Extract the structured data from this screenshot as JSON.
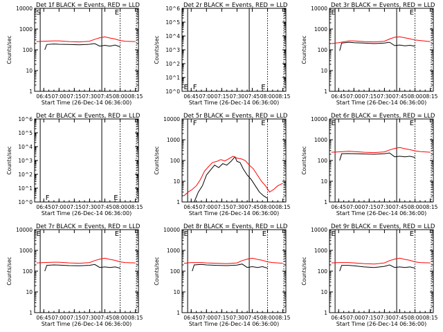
{
  "chart_data": [
    {
      "type": "line",
      "title": "Det 1f BLACK = Events, RED = LLD",
      "xlabel": "Start Time (26-Dec-14 06:36:00)",
      "ylabel": "Counts/sec",
      "yscale": "log",
      "ylim": [
        1,
        10000
      ],
      "ytick_labels": [
        "1",
        "10",
        "100",
        "1000",
        "10000"
      ],
      "xtick_labels": [
        "06:45",
        "07:00",
        "07:15",
        "07:30",
        "07:45",
        "08:00",
        "08:15"
      ],
      "markers": [
        "S",
        "E"
      ],
      "series": [
        {
          "color": "#000000",
          "x": [
            "06:46",
            "06:48",
            "06:55",
            "07:00",
            "07:10",
            "07:20",
            "07:30",
            "07:35",
            "07:40",
            "07:45",
            "07:50",
            "07:55",
            "08:00"
          ],
          "y": [
            100,
            180,
            190,
            185,
            180,
            175,
            185,
            200,
            150,
            165,
            150,
            170,
            140
          ]
        },
        {
          "color": "#ff0000",
          "x": [
            "06:38",
            "06:45",
            "06:55",
            "07:00",
            "07:10",
            "07:20",
            "07:30",
            "07:35",
            "07:40",
            "07:45",
            "07:50",
            "07:55",
            "08:00",
            "08:05",
            "08:15"
          ],
          "y": [
            250,
            260,
            270,
            270,
            250,
            240,
            260,
            320,
            380,
            420,
            370,
            330,
            280,
            260,
            250
          ]
        }
      ]
    },
    {
      "type": "line",
      "title": "Det 2r BLACK = Events, RED = LLD",
      "xlabel": "Start Time (26-Dec-14 06:36:00)",
      "ylabel": "Counts/sec",
      "yscale": "log",
      "ylim": [
        1,
        1000000
      ],
      "ytick_labels": [
        "10^0",
        "10^1",
        "10^2",
        "10^3",
        "10^4",
        "10^5",
        "10^6"
      ],
      "xtick_labels": [
        "06:45",
        "07:00",
        "07:15",
        "07:30",
        "07:45",
        "08:00",
        "08:15"
      ],
      "markers": [
        "E",
        "F",
        "E"
      ],
      "series": []
    },
    {
      "type": "line",
      "title": "Det 3r BLACK = Events, RED = LLD",
      "xlabel": "Start Time (26-Dec-14 06:36:00)",
      "ylabel": "Counts/sec",
      "yscale": "log",
      "ylim": [
        1,
        10000
      ],
      "ytick_labels": [
        "1",
        "10",
        "100",
        "1000",
        "10000"
      ],
      "xtick_labels": [
        "06:45",
        "07:00",
        "07:15",
        "07:30",
        "07:45",
        "08:00",
        "08:15"
      ],
      "markers": [
        "E",
        "E"
      ],
      "series": [
        {
          "color": "#000000",
          "x": [
            "06:46",
            "06:48",
            "06:55",
            "07:00",
            "07:10",
            "07:20",
            "07:30",
            "07:35",
            "07:40",
            "07:45",
            "07:50",
            "07:55",
            "08:00"
          ],
          "y": [
            90,
            210,
            230,
            220,
            210,
            200,
            210,
            230,
            160,
            170,
            155,
            165,
            150
          ]
        },
        {
          "color": "#ff0000",
          "x": [
            "06:38",
            "06:45",
            "06:55",
            "07:00",
            "07:10",
            "07:20",
            "07:30",
            "07:35",
            "07:40",
            "07:45",
            "07:50",
            "07:55",
            "08:00",
            "08:05",
            "08:15"
          ],
          "y": [
            200,
            220,
            270,
            270,
            250,
            240,
            260,
            330,
            400,
            420,
            380,
            340,
            300,
            280,
            250
          ]
        }
      ]
    },
    {
      "type": "line",
      "title": "Det 4r BLACK = Events, RED = LLD",
      "xlabel": "Start Time (26-Dec-14 06:36:00)",
      "ylabel": "Counts/sec",
      "yscale": "log",
      "ylim": [
        1,
        1000000
      ],
      "ytick_labels": [
        "10^0",
        "10^1",
        "10^2",
        "10^3",
        "10^4",
        "10^5",
        "10^6"
      ],
      "xtick_labels": [
        "06:45",
        "07:00",
        "07:15",
        "07:30",
        "07:45",
        "08:00",
        "08:15"
      ],
      "markers": [
        "F",
        "E"
      ],
      "series": []
    },
    {
      "type": "line",
      "title": "Det 5r BLACK = Events, RED = LLD",
      "xlabel": "Start Time (26-Dec-14 06:36:00)",
      "ylabel": "Counts/sec",
      "yscale": "log",
      "ylim": [
        1,
        10000
      ],
      "ytick_labels": [
        "1",
        "10",
        "100",
        "1000",
        "10000"
      ],
      "xtick_labels": [
        "06:45",
        "07:00",
        "07:15",
        "07:30",
        "07:45",
        "08:00",
        "08:15"
      ],
      "markers": [
        "F",
        "E"
      ],
      "series": [
        {
          "color": "#000000",
          "x": [
            "06:48",
            "06:52",
            "06:56",
            "07:00",
            "07:04",
            "07:08",
            "07:12",
            "07:16",
            "07:20",
            "07:24",
            "07:28",
            "07:30",
            "07:33",
            "07:36",
            "07:40",
            "07:44",
            "07:48",
            "07:52",
            "07:56",
            "08:00"
          ],
          "y": [
            1,
            3,
            6,
            20,
            35,
            60,
            45,
            70,
            60,
            90,
            150,
            90,
            80,
            40,
            20,
            12,
            6,
            3,
            2,
            1.5
          ]
        },
        {
          "color": "#ff0000",
          "x": [
            "06:38",
            "06:42",
            "06:46",
            "06:50",
            "06:54",
            "06:58",
            "07:02",
            "07:06",
            "07:10",
            "07:14",
            "07:18",
            "07:22",
            "07:26",
            "07:30",
            "07:34",
            "07:38",
            "07:42",
            "07:46",
            "07:50",
            "07:54",
            "07:58",
            "08:02",
            "08:06",
            "08:10",
            "08:15"
          ],
          "y": [
            2,
            3,
            4,
            6,
            12,
            30,
            50,
            80,
            90,
            110,
            95,
            120,
            160,
            130,
            120,
            100,
            60,
            40,
            20,
            10,
            6,
            3,
            4,
            6,
            8
          ]
        }
      ]
    },
    {
      "type": "line",
      "title": "Det 6r BLACK = Events, RED = LLD",
      "xlabel": "Start Time (26-Dec-14 06:36:00)",
      "ylabel": "Counts/sec",
      "yscale": "log",
      "ylim": [
        1,
        10000
      ],
      "ytick_labels": [
        "1",
        "10",
        "100",
        "1000",
        "10000"
      ],
      "xtick_labels": [
        "06:45",
        "07:00",
        "07:15",
        "07:30",
        "07:45",
        "08:00",
        "08:15"
      ],
      "markers": [
        "E",
        "E"
      ],
      "series": [
        {
          "color": "#000000",
          "x": [
            "06:46",
            "06:48",
            "06:55",
            "07:00",
            "07:10",
            "07:20",
            "07:30",
            "07:35",
            "07:40",
            "07:45",
            "07:50",
            "07:55",
            "08:00"
          ],
          "y": [
            100,
            210,
            215,
            210,
            205,
            200,
            210,
            230,
            150,
            160,
            150,
            160,
            140
          ]
        },
        {
          "color": "#ff0000",
          "x": [
            "06:38",
            "06:45",
            "06:55",
            "07:00",
            "07:10",
            "07:20",
            "07:30",
            "07:35",
            "07:40",
            "07:45",
            "07:50",
            "07:55",
            "08:00",
            "08:05",
            "08:15"
          ],
          "y": [
            250,
            260,
            280,
            270,
            250,
            240,
            260,
            320,
            380,
            420,
            370,
            330,
            290,
            270,
            250
          ]
        }
      ]
    },
    {
      "type": "line",
      "title": "Det 7r BLACK = Events, RED = LLD",
      "xlabel": "Start Time (26-Dec-14 06:36:00)",
      "ylabel": "Counts/sec",
      "yscale": "log",
      "ylim": [
        1,
        10000
      ],
      "ytick_labels": [
        "1",
        "10",
        "100",
        "1000",
        "10000"
      ],
      "xtick_labels": [
        "06:45",
        "07:00",
        "07:15",
        "07:30",
        "07:45",
        "08:00",
        "08:15"
      ],
      "markers": [
        "E",
        "E"
      ],
      "series": [
        {
          "color": "#000000",
          "x": [
            "06:46",
            "06:48",
            "06:55",
            "07:00",
            "07:10",
            "07:20",
            "07:30",
            "07:35",
            "07:40",
            "07:45",
            "07:50",
            "07:55",
            "08:00"
          ],
          "y": [
            100,
            190,
            200,
            195,
            185,
            180,
            190,
            210,
            150,
            160,
            150,
            160,
            140
          ]
        },
        {
          "color": "#ff0000",
          "x": [
            "06:38",
            "06:45",
            "06:55",
            "07:00",
            "07:10",
            "07:20",
            "07:30",
            "07:35",
            "07:40",
            "07:45",
            "07:50",
            "07:55",
            "08:00",
            "08:05",
            "08:15"
          ],
          "y": [
            250,
            260,
            270,
            270,
            250,
            240,
            260,
            320,
            380,
            420,
            370,
            330,
            280,
            260,
            250
          ]
        }
      ]
    },
    {
      "type": "line",
      "title": "Det 8r BLACK = Events, RED = LLD",
      "xlabel": "Start Time (26-Dec-14 06:36:00)",
      "ylabel": "Counts/sec",
      "yscale": "log",
      "ylim": [
        1,
        10000
      ],
      "ytick_labels": [
        "1",
        "10",
        "100",
        "1000",
        "10000"
      ],
      "xtick_labels": [
        "06:45",
        "07:00",
        "07:15",
        "07:30",
        "07:45",
        "08:00",
        "08:15"
      ],
      "markers": [
        "E",
        "E"
      ],
      "series": [
        {
          "color": "#000000",
          "x": [
            "06:46",
            "06:48",
            "06:55",
            "07:00",
            "07:10",
            "07:20",
            "07:30",
            "07:35",
            "07:40",
            "07:45",
            "07:50",
            "07:55",
            "08:00"
          ],
          "y": [
            100,
            200,
            210,
            200,
            190,
            185,
            195,
            220,
            150,
            165,
            150,
            165,
            140
          ]
        },
        {
          "color": "#ff0000",
          "x": [
            "06:38",
            "06:45",
            "06:55",
            "07:00",
            "07:10",
            "07:20",
            "07:30",
            "07:35",
            "07:40",
            "07:45",
            "07:50",
            "07:55",
            "08:00",
            "08:05",
            "08:15"
          ],
          "y": [
            240,
            260,
            260,
            250,
            240,
            230,
            250,
            320,
            380,
            420,
            370,
            330,
            280,
            260,
            240
          ]
        }
      ]
    },
    {
      "type": "line",
      "title": "Det 9r BLACK = Events, RED = LLD",
      "xlabel": "Start Time (26-Dec-14 06:36:00)",
      "ylabel": "Counts/sec",
      "yscale": "log",
      "ylim": [
        1,
        10000
      ],
      "ytick_labels": [
        "1",
        "10",
        "100",
        "1000",
        "10000"
      ],
      "xtick_labels": [
        "06:45",
        "07:00",
        "07:15",
        "07:30",
        "07:45",
        "08:00",
        "08:15"
      ],
      "markers": [
        "E",
        "E"
      ],
      "series": [
        {
          "color": "#000000",
          "x": [
            "06:46",
            "06:48",
            "06:55",
            "07:00",
            "07:10",
            "07:20",
            "07:30",
            "07:35",
            "07:40",
            "07:45",
            "07:50",
            "07:55",
            "08:00"
          ],
          "y": [
            100,
            190,
            190,
            180,
            160,
            150,
            170,
            200,
            150,
            160,
            150,
            160,
            140
          ]
        },
        {
          "color": "#ff0000",
          "x": [
            "06:38",
            "06:45",
            "06:55",
            "07:00",
            "07:10",
            "07:20",
            "07:30",
            "07:35",
            "07:40",
            "07:45",
            "07:50",
            "07:55",
            "08:00",
            "08:05",
            "08:15"
          ],
          "y": [
            250,
            260,
            260,
            250,
            230,
            220,
            250,
            320,
            380,
            420,
            370,
            330,
            280,
            260,
            250
          ]
        }
      ]
    }
  ]
}
